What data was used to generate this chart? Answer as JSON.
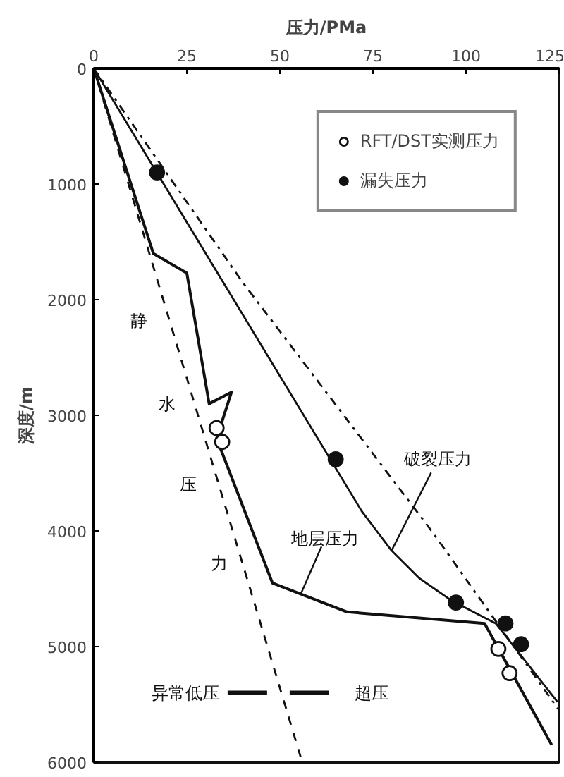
{
  "chart_data": {
    "type": "line",
    "xlabel": "压力/PMa",
    "ylabel": "深度/m",
    "xlim": [
      0,
      125
    ],
    "xticks": [
      0,
      25,
      50,
      75,
      100,
      125
    ],
    "ylim": [
      6000,
      0
    ],
    "yticks": [
      0,
      1000,
      2000,
      3000,
      4000,
      5000,
      6000
    ],
    "grid": false,
    "legend": "top right",
    "marker": "none",
    "series": [
      {
        "color": "#111111",
        "line_style": "dashed",
        "x": [
          0,
          56
        ],
        "values": [
          0,
          6000
        ]
      },
      {
        "color": "#111111",
        "line_style": "dashdot",
        "x": [
          0,
          40,
          91,
          125
        ],
        "values": [
          0,
          1850,
          4010,
          5550
        ]
      },
      {
        "color": "#111111",
        "line_style": "solid",
        "x": [
          0,
          72,
          80,
          87.5,
          96,
          108,
          124.6
        ],
        "values": [
          0,
          3830,
          4170,
          4410,
          4600,
          4800,
          5480
        ]
      },
      {
        "color": "#111111",
        "line_style": "solid",
        "x": [
          0,
          16,
          25,
          31,
          37,
          33,
          48,
          68,
          105,
          123
        ],
        "values": [
          0,
          1600,
          1770,
          2900,
          2800,
          3200,
          4450,
          4700,
          4800,
          5850
        ]
      },
      {
        "type": "scatter",
        "name": "RFT/DST实测压力",
        "color": "#ffffff",
        "marker": "circle",
        "x": [
          33,
          34.5,
          108.7,
          111.7
        ],
        "values": [
          3110,
          3230,
          5020,
          5230
        ]
      },
      {
        "type": "scatter",
        "name": "漏失压力",
        "color": "#111111",
        "marker": "circle",
        "x": [
          17,
          65,
          97.3,
          110.6,
          114.8
        ],
        "values": [
          900,
          3380,
          4620,
          4800,
          4980
        ]
      }
    ],
    "annotations": [
      "静",
      "水",
      "压",
      "力",
      {
        "text": "破裂压力",
        "x": 80,
        "y": 4170
      },
      {
        "text": "地层压力",
        "x": 55.7,
        "y": 4540
      },
      "异常低压",
      "超压"
    ]
  }
}
